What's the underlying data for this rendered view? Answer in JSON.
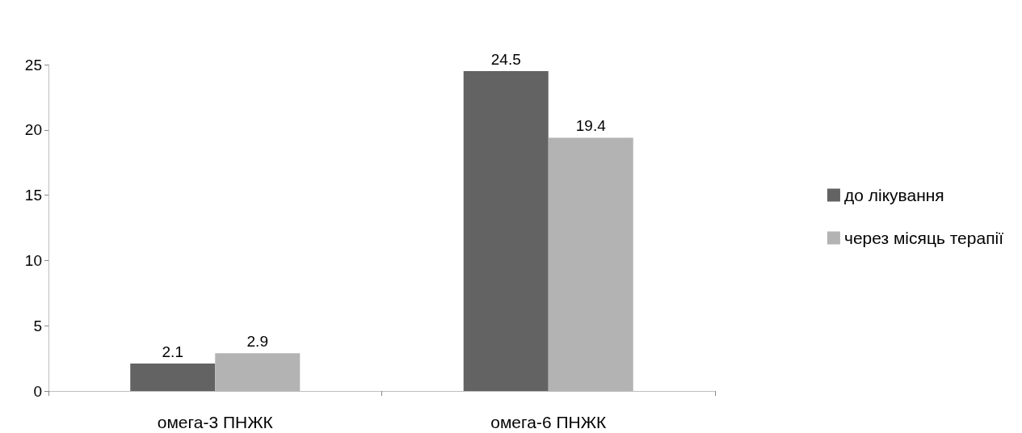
{
  "chart_data": {
    "type": "bar",
    "categories": [
      "омега-3 ПНЖК",
      "омега-6 ПНЖК"
    ],
    "series": [
      {
        "name": "до лікування",
        "color": "#636363",
        "values": [
          2.1,
          24.5
        ]
      },
      {
        "name": "через місяць терапії",
        "color": "#b3b3b3",
        "values": [
          2.9,
          19.4
        ]
      }
    ],
    "ylim": [
      0,
      25
    ],
    "yticks": [
      0,
      5,
      10,
      15,
      20,
      25
    ],
    "grid": false,
    "legend": "right",
    "data_labels": true
  }
}
